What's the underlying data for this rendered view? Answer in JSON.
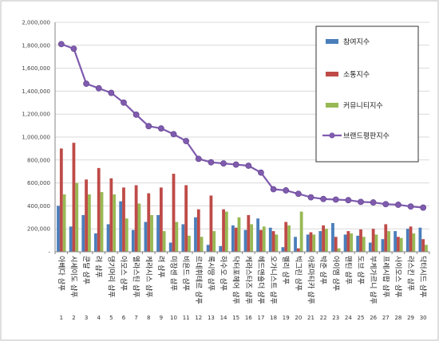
{
  "chart_data": {
    "type": "bar",
    "categories": [
      "아베다 샴푸",
      "시세이도 샴푸",
      "쿤달 샴푸",
      "려 샴푸",
      "댕기머리 샴푸",
      "아모스 샴푸",
      "엘라스틴 샴푸",
      "케라시스 샴푸",
      "려 샴푸",
      "미장센 샴푸",
      "비욘드 샴푸",
      "르네휘테르 샴푸",
      "록시땅 샴푸",
      "하수오 샴푸",
      "닥터포헤어 샴푸",
      "케라스타즈 샴푸",
      "헤드앤숄더 샴푸",
      "오가니스트 샴푸",
      "펠리 샴푸",
      "빅그린 샴푸",
      "아로마티카 샴푸",
      "박준 샴푸",
      "아이엠 샴푸",
      "팬틴 샴푸",
      "도브 샴푸",
      "부케가르니 샴푸",
      "프레시팝 샴푸",
      "사이오스 샴푸",
      "라스킨 샴푸",
      "닥터시드 샴푸"
    ],
    "indices": [
      "1",
      "2",
      "3",
      "4",
      "5",
      "6",
      "7",
      "8",
      "9",
      "10",
      "11",
      "12",
      "13",
      "14",
      "15",
      "16",
      "17",
      "18",
      "19",
      "20",
      "21",
      "22",
      "23",
      "24",
      "25",
      "26",
      "27",
      "28",
      "29",
      "30"
    ],
    "ylim": [
      0,
      2000000
    ],
    "yticks": [
      0,
      200000,
      400000,
      600000,
      800000,
      1000000,
      1200000,
      1400000,
      1600000,
      1800000,
      2000000
    ],
    "ytick_labels": [
      "-",
      "200,000",
      "400,000",
      "600,000",
      "800,000",
      "1,000,000",
      "1,200,000",
      "1,400,000",
      "1,600,000",
      "1,800,000",
      "2,000,000"
    ],
    "series": [
      {
        "name": "참여지수",
        "type": "bar",
        "color": "#4a7ebb",
        "values": [
          400000,
          220000,
          320000,
          160000,
          240000,
          440000,
          190000,
          260000,
          320000,
          80000,
          240000,
          300000,
          60000,
          50000,
          230000,
          190000,
          290000,
          210000,
          40000,
          130000,
          150000,
          180000,
          250000,
          150000,
          140000,
          80000,
          110000,
          180000,
          200000,
          210000
        ]
      },
      {
        "name": "소통지수",
        "type": "bar",
        "color": "#be4b48",
        "values": [
          900000,
          950000,
          630000,
          730000,
          640000,
          560000,
          580000,
          510000,
          560000,
          680000,
          580000,
          370000,
          490000,
          370000,
          210000,
          320000,
          190000,
          180000,
          260000,
          30000,
          170000,
          230000,
          130000,
          180000,
          195000,
          200000,
          240000,
          130000,
          220000,
          110000
        ]
      },
      {
        "name": "커뮤니티지수",
        "type": "bar",
        "color": "#98b954",
        "values": [
          500000,
          600000,
          500000,
          520000,
          500000,
          290000,
          420000,
          320000,
          180000,
          260000,
          140000,
          130000,
          180000,
          350000,
          300000,
          240000,
          220000,
          150000,
          230000,
          350000,
          150000,
          200000,
          30000,
          160000,
          130000,
          150000,
          180000,
          120000,
          160000,
          60000
        ]
      },
      {
        "name": "브랜드평판지수",
        "type": "line",
        "color": "#7f5bae",
        "values": [
          1810000,
          1770000,
          1465000,
          1425000,
          1385000,
          1300000,
          1195000,
          1095000,
          1075000,
          1025000,
          965000,
          810000,
          780000,
          770000,
          760000,
          750000,
          690000,
          545000,
          535000,
          505000,
          475000,
          460000,
          455000,
          450000,
          435000,
          430000,
          415000,
          410000,
          395000,
          385000
        ]
      }
    ],
    "grid": true,
    "legend_position": "right"
  }
}
